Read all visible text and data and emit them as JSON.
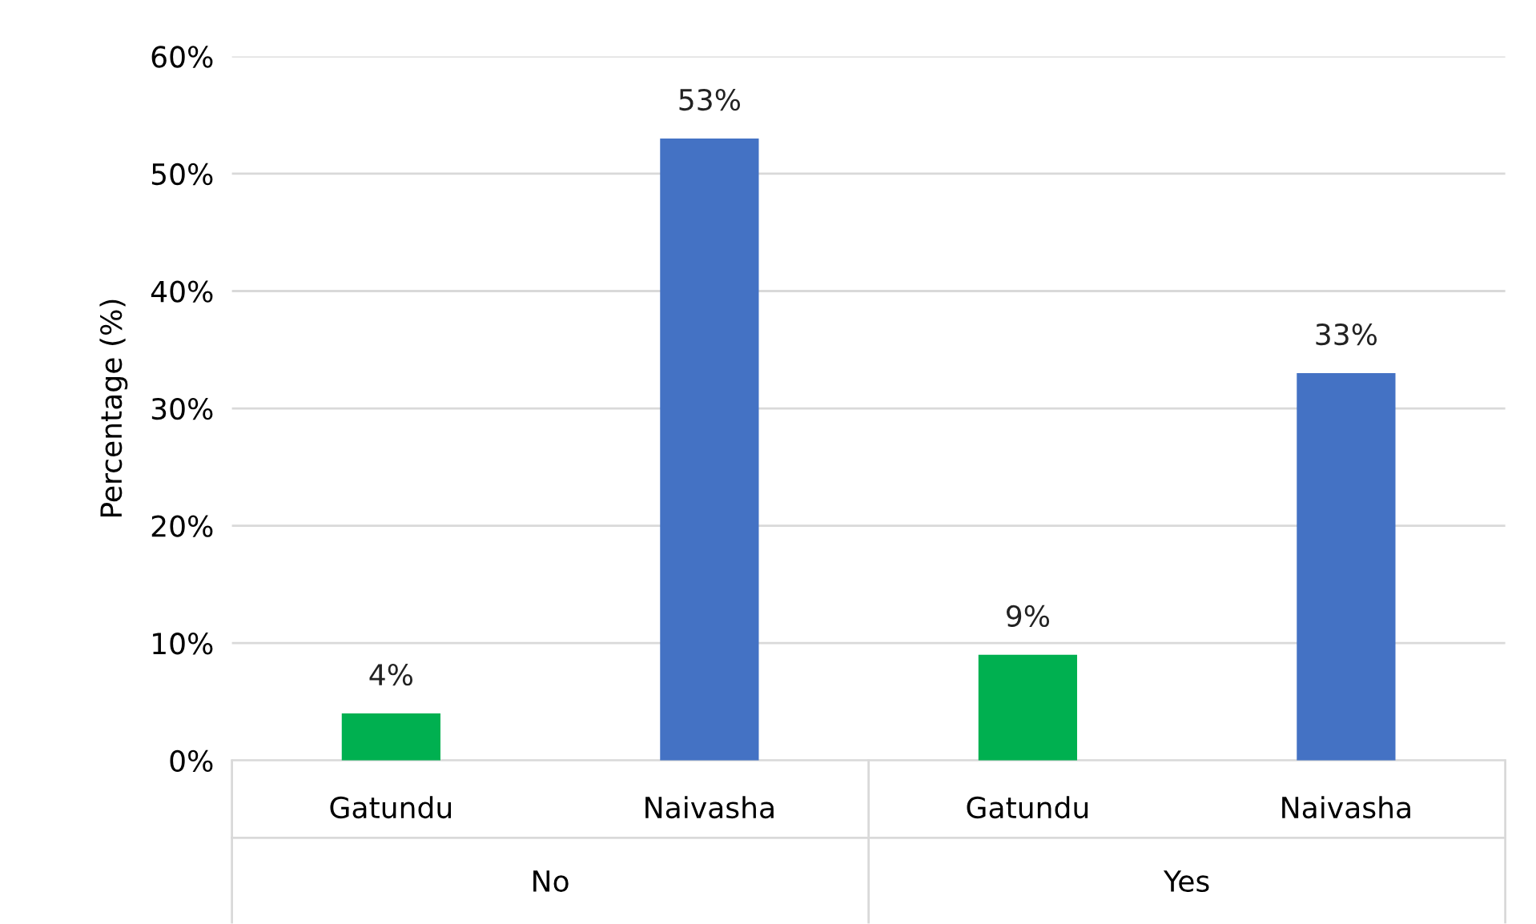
{
  "chart_data": {
    "type": "bar",
    "ylabel": "Percentage (%)",
    "categories": [
      "Gatundu",
      "Naivasha",
      "Gatundu",
      "Naivasha"
    ],
    "values": [
      4,
      53,
      9,
      33
    ],
    "colors": [
      "#00b050",
      "#4472c4",
      "#00b050",
      "#4472c4"
    ],
    "value_labels": [
      "4%",
      "53%",
      "9%",
      "33%"
    ],
    "ylim": [
      0,
      60
    ],
    "yticks": [
      {
        "value": 0,
        "label": "0%"
      },
      {
        "value": 10,
        "label": "10%"
      },
      {
        "value": 20,
        "label": "20%"
      },
      {
        "value": 30,
        "label": "30%"
      },
      {
        "value": 40,
        "label": "40%"
      },
      {
        "value": 50,
        "label": "50%"
      },
      {
        "value": 60,
        "label": "60%"
      }
    ],
    "annotations": [
      "No",
      "Yes"
    ],
    "grid": "y",
    "legend": false
  }
}
